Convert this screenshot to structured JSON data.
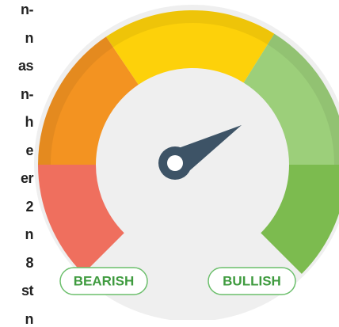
{
  "side_text": [
    "n-",
    "n",
    "as",
    "n-",
    "h",
    "e",
    "er",
    "2",
    "n",
    "8",
    "st",
    "n"
  ],
  "gauge": {
    "left_label": "BEARISH",
    "right_label": "BULLISH"
  }
}
